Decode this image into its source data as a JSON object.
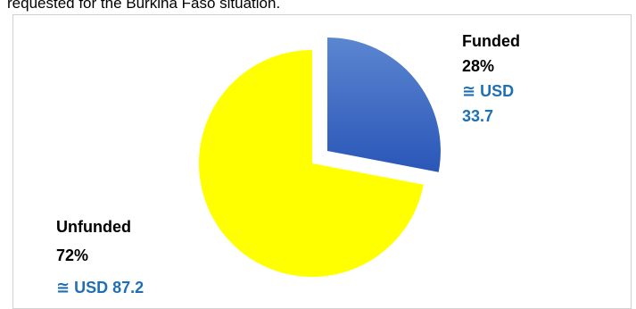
{
  "caption": "requested for the Burkina Faso situation.",
  "chart_data": {
    "type": "pie",
    "title": "",
    "slices": [
      {
        "name": "Funded",
        "percent": 28,
        "amount_label": "≅ USD 33.7",
        "amount_line1": "≅ USD",
        "amount_line2": "33.7",
        "exploded": true
      },
      {
        "name": "Unfunded",
        "percent": 72,
        "amount_label": "≅ USD 87.2",
        "exploded": false
      }
    ],
    "percent_labels": [
      "28%",
      "72%"
    ]
  },
  "colors": {
    "funded_top": "#5b86d0",
    "funded_bottom": "#2a56b8",
    "unfunded": "#ffff00",
    "label_dark": "#000000",
    "label_blue": "#1f6fb5"
  }
}
